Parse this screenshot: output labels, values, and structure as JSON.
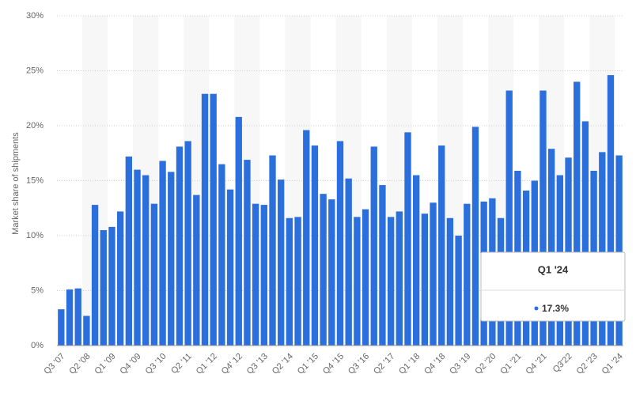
{
  "chart_data": {
    "type": "bar",
    "y_label": "Market share of shipments",
    "categories": [
      "Q3 '07",
      null,
      null,
      "Q2 '08",
      null,
      null,
      "Q1 '09",
      null,
      null,
      "Q4 '09",
      null,
      null,
      "Q3 '10",
      null,
      null,
      "Q2 '11",
      null,
      null,
      "Q1 '12",
      null,
      null,
      "Q4' 12",
      null,
      null,
      "Q3 '13",
      null,
      null,
      "Q2 '14",
      null,
      null,
      "Q1 '15",
      null,
      null,
      "Q4 '15",
      null,
      null,
      "Q3 '16",
      null,
      null,
      "Q2 '17",
      null,
      null,
      "Q1 '18",
      null,
      null,
      "Q4 '18",
      null,
      null,
      "Q3 '19",
      null,
      null,
      "Q2 '20",
      null,
      null,
      "Q1 '21",
      null,
      null,
      "Q4 '21",
      null,
      null,
      "Q3'22",
      null,
      null,
      "Q2 '23",
      null,
      null,
      "Q1 '24"
    ],
    "values": [
      3.3,
      5.1,
      5.2,
      2.7,
      12.8,
      10.5,
      10.8,
      12.2,
      17.2,
      16.0,
      15.5,
      12.9,
      16.8,
      15.8,
      18.1,
      18.6,
      13.7,
      22.9,
      22.9,
      16.5,
      14.2,
      20.8,
      16.9,
      12.9,
      12.8,
      17.3,
      15.1,
      11.6,
      11.7,
      19.6,
      18.2,
      13.8,
      13.3,
      18.6,
      15.2,
      11.7,
      12.4,
      18.1,
      14.6,
      11.7,
      12.2,
      19.4,
      15.5,
      12.0,
      13.0,
      18.2,
      11.6,
      10.0,
      12.9,
      19.9,
      13.1,
      13.4,
      11.6,
      23.2,
      15.9,
      14.1,
      15.0,
      23.2,
      17.9,
      15.5,
      17.1,
      24.0,
      20.4,
      15.9,
      17.6,
      24.6,
      17.3
    ],
    "color": "#2b6fdc",
    "ylim": [
      0,
      30
    ],
    "yticks": [
      {
        "value": 0,
        "label": "0%"
      },
      {
        "value": 5,
        "label": "5%"
      },
      {
        "value": 10,
        "label": "10%"
      },
      {
        "value": 15,
        "label": "15%"
      },
      {
        "value": 20,
        "label": "20%"
      },
      {
        "value": 25,
        "label": "25%"
      },
      {
        "value": 30,
        "label": "30%"
      }
    ],
    "grid": true,
    "tooltip": {
      "title": "Q1 '24",
      "value_label": "17.3%"
    }
  }
}
